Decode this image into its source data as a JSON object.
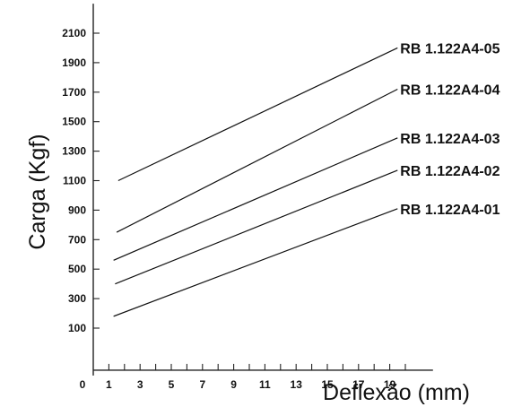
{
  "chart_data": {
    "type": "line",
    "xlabel": "Deflexão (mm)",
    "ylabel": "Carga (Kgf)",
    "x_ticks": [
      0,
      1,
      3,
      5,
      7,
      9,
      11,
      13,
      15,
      17,
      19
    ],
    "y_ticks": [
      100,
      300,
      500,
      700,
      900,
      1100,
      1300,
      1500,
      1700,
      1900,
      2100
    ],
    "xlim": [
      0,
      22
    ],
    "ylim": [
      -100,
      2300
    ],
    "grid": false,
    "series": [
      {
        "name": "RB 1.122A4-05",
        "x": [
          1.6,
          19.5
        ],
        "y": [
          1100,
          2000
        ]
      },
      {
        "name": "RB 1.122A4-04",
        "x": [
          1.5,
          19.5
        ],
        "y": [
          750,
          1720
        ]
      },
      {
        "name": "RB 1.122A4-03",
        "x": [
          1.3,
          19.5
        ],
        "y": [
          560,
          1390
        ]
      },
      {
        "name": "RB 1.122A4-02",
        "x": [
          1.4,
          19.5
        ],
        "y": [
          400,
          1170
        ]
      },
      {
        "name": "RB 1.122A4-01",
        "x": [
          1.3,
          19.5
        ],
        "y": [
          180,
          910
        ]
      }
    ]
  }
}
